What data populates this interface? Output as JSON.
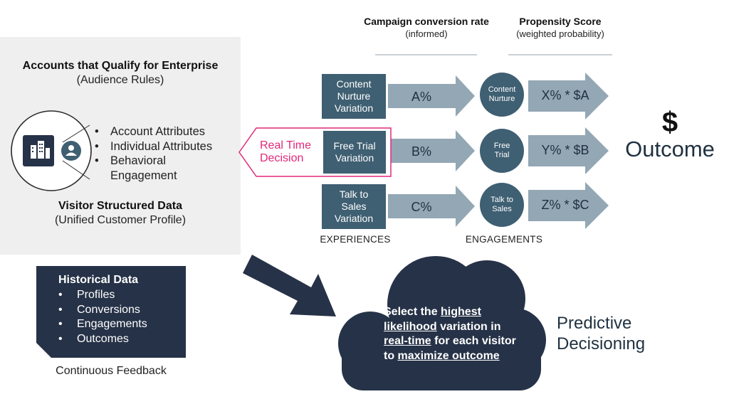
{
  "audience": {
    "title": "Accounts that Qualify for Enterprise",
    "subtitle": "(Audience Rules)",
    "attributes": [
      "Account Attributes",
      "Individual Attributes",
      "Behavioral",
      "Engagement"
    ],
    "profile_title": "Visitor Structured Data",
    "profile_subtitle": "(Unified Customer Profile)"
  },
  "historical": {
    "title": "Historical Data",
    "items": [
      "Profiles",
      "Conversions",
      "Engagements",
      "Outcomes"
    ],
    "caption": "Continuous Feedback"
  },
  "headers": {
    "conversion_title": "Campaign conversion rate",
    "conversion_sub": "(informed)",
    "propensity_title": "Propensity Score",
    "propensity_sub": "(weighted probability)"
  },
  "realtime": {
    "line1": "Real Time",
    "line2": "Decision"
  },
  "rows": [
    {
      "experience": [
        "Content",
        "Nurture",
        "Variation"
      ],
      "rate": "A%",
      "engagement": [
        "Content",
        "Nurture"
      ],
      "score": "X% * $A"
    },
    {
      "experience": [
        "Free Trial",
        "Variation"
      ],
      "rate": "B%",
      "engagement": [
        "Free",
        "Trial"
      ],
      "score": "Y% * $B"
    },
    {
      "experience": [
        "Talk to",
        "Sales",
        "Variation"
      ],
      "rate": "C%",
      "engagement": [
        "Talk to",
        "Sales"
      ],
      "score": "Z% * $C"
    }
  ],
  "labels": {
    "experiences": "EXPERIENCES",
    "engagements": "ENGAGEMENTS"
  },
  "outcome": {
    "symbol": "$",
    "label": "Outcome"
  },
  "cloud": {
    "t1": "Select the ",
    "t2": "highest",
    "t3": "likelihood",
    "t4": " variation in",
    "t5": "real-time",
    "t6": " for each visitor",
    "t7": "to ",
    "t8": "maximize outcome"
  },
  "predictive": {
    "line1": "Predictive",
    "line2": "Decisioning"
  },
  "colors": {
    "navy": "#263247",
    "slate": "#3f5f72",
    "arrow": "#93a7b4",
    "magenta": "#e0297a",
    "panel": "#efeff0"
  },
  "icons": [
    "enterprise-building-icon",
    "user-profile-icon"
  ]
}
